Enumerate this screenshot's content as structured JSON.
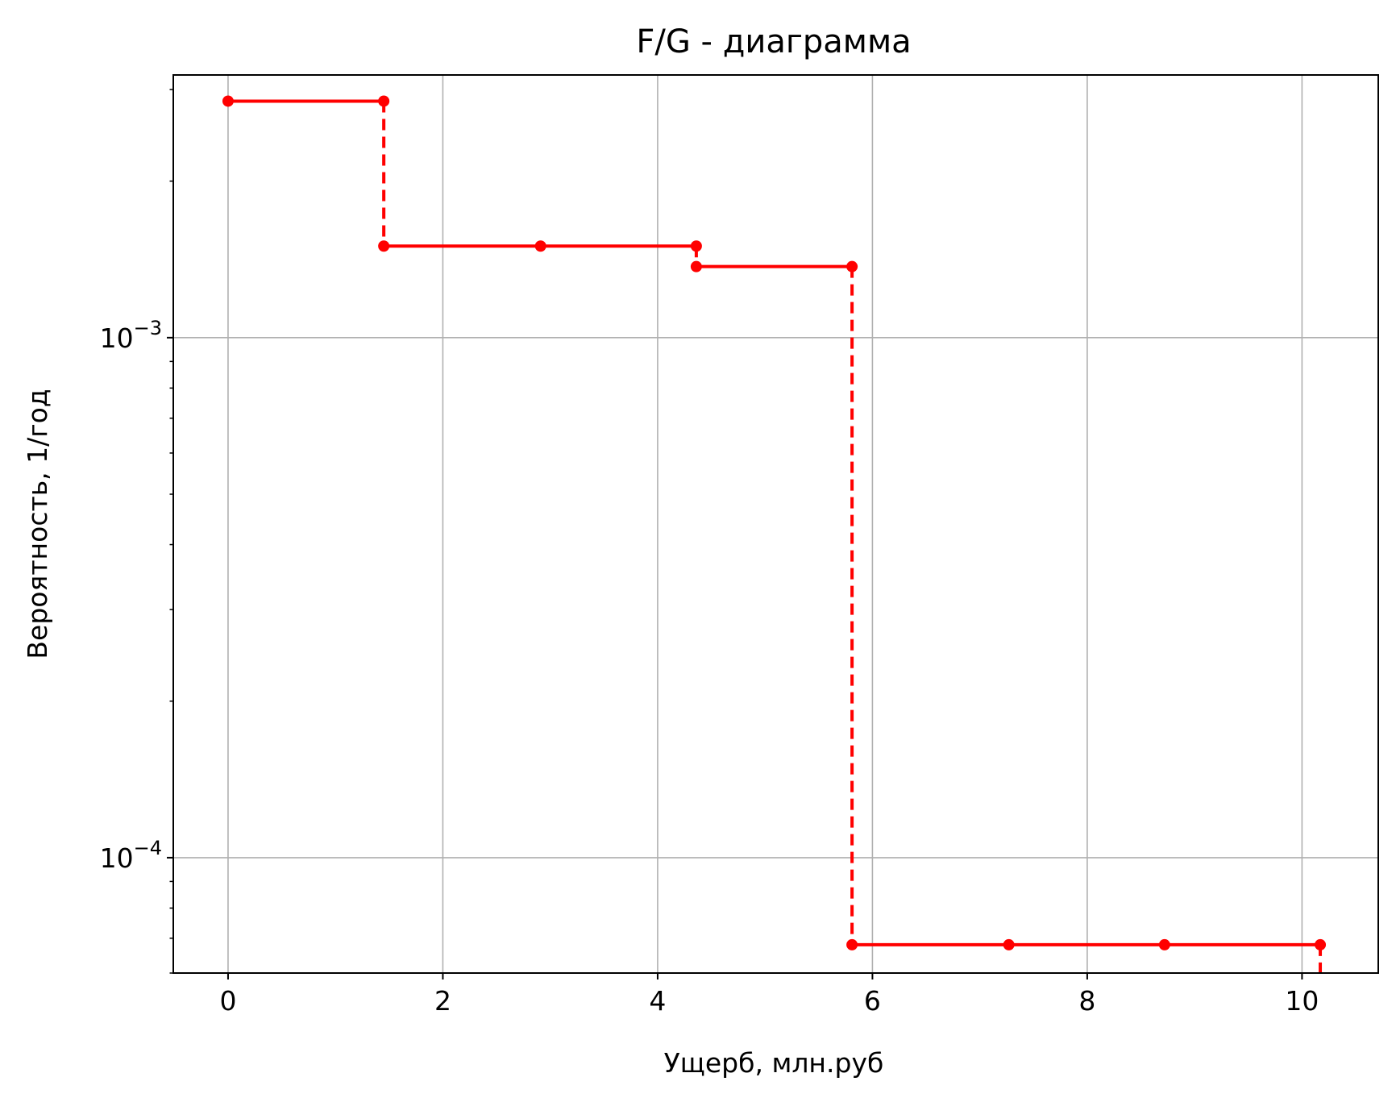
{
  "chart_data": {
    "type": "line",
    "title": "F/G - диаграмма",
    "xlabel": "Ущерб, млн.руб",
    "ylabel": "Вероятность, 1/год",
    "xlim": [
      -0.51,
      10.71
    ],
    "ylim": [
      6e-05,
      0.0032
    ],
    "yscale": "log",
    "grid": true,
    "color": "#ff0000",
    "x_ticks": [
      {
        "value": 0,
        "label": "0"
      },
      {
        "value": 2,
        "label": "2"
      },
      {
        "value": 4,
        "label": "4"
      },
      {
        "value": 6,
        "label": "6"
      },
      {
        "value": 8,
        "label": "8"
      },
      {
        "value": 10,
        "label": "10"
      }
    ],
    "y_ticks": [
      {
        "value": 0.001,
        "base": "10",
        "exp": "−3"
      },
      {
        "value": 0.0001,
        "base": "10",
        "exp": "−4"
      }
    ],
    "series": [
      {
        "style": "step",
        "x": [
          0,
          1.45,
          1.45,
          2.91,
          4.36,
          4.36,
          5.81,
          5.81,
          7.27,
          8.72,
          10.17,
          10.17
        ],
        "y": [
          0.00285,
          0.00285,
          0.0015,
          0.0015,
          0.0015,
          0.00137,
          0.00137,
          6.8e-05,
          6.8e-05,
          6.8e-05,
          6.8e-05,
          6e-05
        ]
      }
    ]
  }
}
